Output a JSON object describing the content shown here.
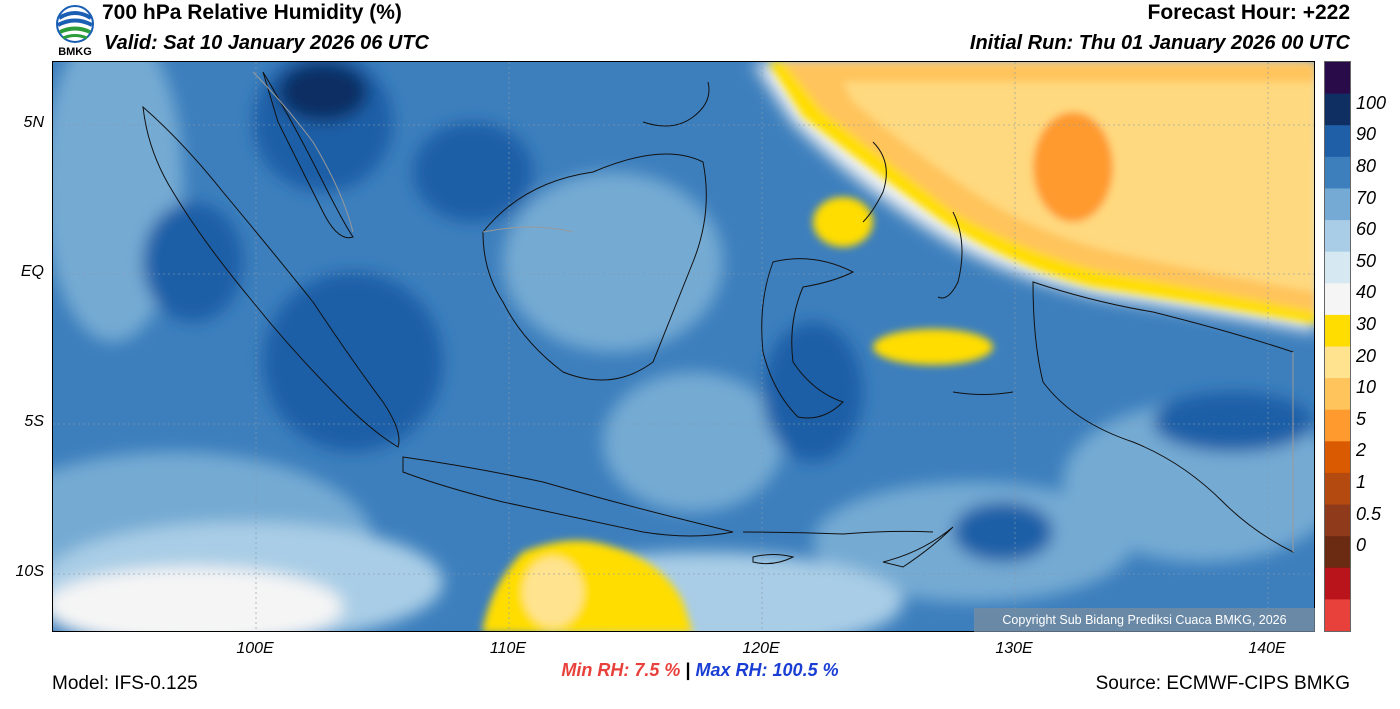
{
  "header": {
    "title": "700 hPa Relative Humidity (%)",
    "valid": "Valid: Sat 10 January 2026 06 UTC",
    "forecast_hour": "Forecast Hour: +222",
    "initial_run": "Initial Run: Thu 01 January 2026 00 UTC",
    "logo_text": "BMKG"
  },
  "axes": {
    "y_labels": [
      "5N",
      "EQ",
      "5S",
      "10S"
    ],
    "x_labels": [
      "100E",
      "110E",
      "120E",
      "130E",
      "140E"
    ]
  },
  "colorbar": {
    "labels": [
      "100",
      "90",
      "80",
      "70",
      "60",
      "50",
      "40",
      "30",
      "20",
      "10",
      "5",
      "2",
      "1",
      "0.5",
      "0"
    ],
    "colors": [
      "#2a0b4a",
      "#0f2f63",
      "#1f5fa7",
      "#3d7fbd",
      "#74aad3",
      "#a9cde6",
      "#d6e8f2",
      "#f5f5f5",
      "#ffdd00",
      "#ffe38f",
      "#ffc45c",
      "#ff9a2e",
      "#d95a00",
      "#b44a0f",
      "#8f3a1a",
      "#6b2a12",
      "#b9141c",
      "#e8413c"
    ]
  },
  "stats": {
    "min_label": "Min RH:",
    "min_value": "7.5 %",
    "separator": "|",
    "max_label": "Max RH:",
    "max_value": "100.5 %"
  },
  "footer": {
    "model": "Model: IFS-0.125",
    "source": "Source: ECMWF-CIPS BMKG",
    "copyright": "Copyright Sub Bidang Prediksi Cuaca BMKG, 2026"
  }
}
